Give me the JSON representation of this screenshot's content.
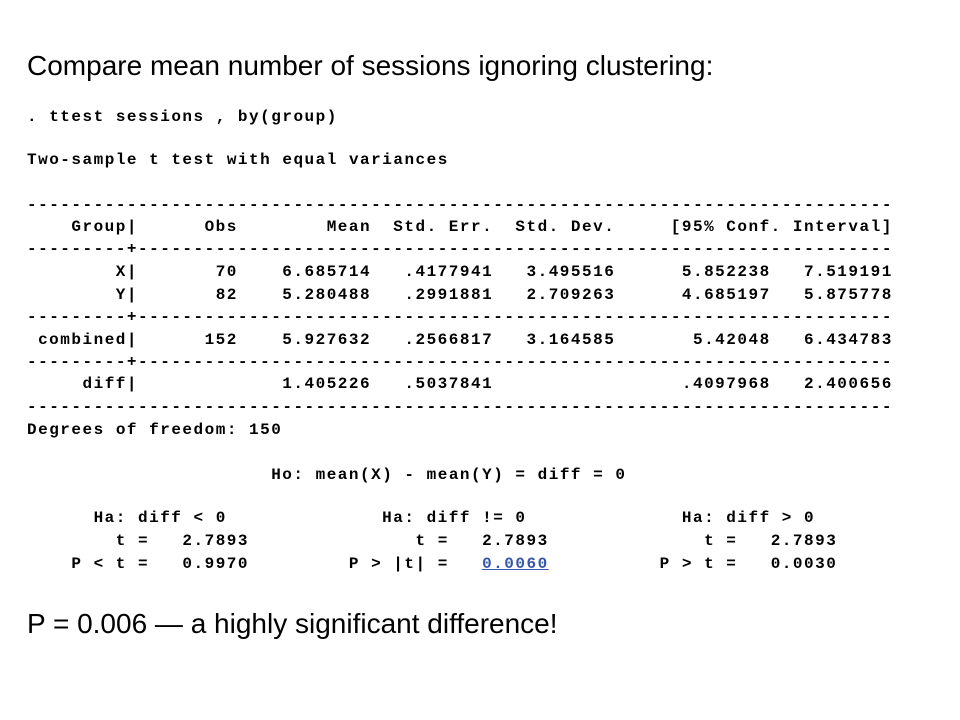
{
  "heading": "Compare mean number of sessions ignoring clustering:",
  "command": ". ttest sessions , by(group)",
  "output_title": "Two-sample t test with equal variances",
  "rule_full": "------------------------------------------------------------------------------",
  "rule_split": "---------+--------------------------------------------------------------------",
  "separator": "|",
  "table": {
    "header": [
      "Group",
      "Obs",
      "Mean",
      "Std. Err.",
      "Std. Dev.",
      "[95% Conf. Interval]"
    ],
    "rows": [
      [
        "X",
        "70",
        "6.685714",
        ".4177941",
        "3.495516",
        "5.852238",
        "7.519191"
      ],
      [
        "Y",
        "82",
        "5.280488",
        ".2991881",
        "2.709263",
        "4.685197",
        "5.875778"
      ],
      [
        "combined",
        "152",
        "5.927632",
        ".2566817",
        "3.164585",
        "5.42048",
        "6.434783"
      ],
      [
        "diff",
        "",
        "1.405226",
        ".5037841",
        "",
        ".4097968",
        "2.400656"
      ]
    ]
  },
  "degrees_of_freedom": "Degrees of freedom: 150",
  "null_hypothesis": "Ho: mean(X) - mean(Y) = diff = 0",
  "tests": [
    {
      "hypothesis": "Ha: diff < 0",
      "t_label": "t =",
      "t": "2.7893",
      "p_label": "P < t =",
      "p": "0.9970"
    },
    {
      "hypothesis": "Ha: diff != 0",
      "t_label": "t =",
      "t": "2.7893",
      "p_label": "P > |t| =",
      "p": "0.0060"
    },
    {
      "hypothesis": "Ha: diff > 0",
      "t_label": "t =",
      "t": "2.7893",
      "p_label": "P > t =",
      "p": "0.0030"
    }
  ],
  "conclusion": "P = 0.006 — a highly significant difference!"
}
